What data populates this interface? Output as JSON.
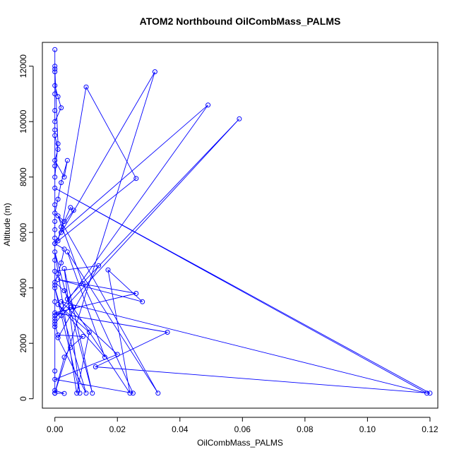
{
  "chart_data": {
    "type": "line",
    "title": "ATOM2 Northbound OilCombMass_PALMS",
    "xlabel": "OilCombMass_PALMS",
    "ylabel": "Altitude (m)",
    "xlim": [
      -0.004,
      0.1225
    ],
    "ylim": [
      -340,
      12860
    ],
    "xticks": [
      0,
      0.02,
      0.04,
      0.06,
      0.08,
      0.1,
      0.12
    ],
    "xtick_labels": [
      "0.00",
      "0.02",
      "0.04",
      "0.06",
      "0.08",
      "0.10",
      "0.12"
    ],
    "yticks": [
      0,
      2000,
      4000,
      6000,
      8000,
      10000,
      12000
    ],
    "ytick_labels": [
      "0",
      "2000",
      "4000",
      "6000",
      "8000",
      "10000",
      "12000"
    ],
    "marker": "open-circle",
    "color": "#0000ff",
    "grid": false,
    "legend": "none",
    "series": [
      {
        "points": [
          [
            0.0,
            12600
          ],
          [
            0.0,
            12000
          ],
          [
            0.0,
            11800
          ],
          [
            0.0,
            11300
          ],
          [
            0.001,
            10900
          ],
          [
            0.002,
            10500
          ],
          [
            0.0,
            10000
          ],
          [
            0.0,
            9500
          ],
          [
            0.001,
            9000
          ],
          [
            0.0,
            8600
          ],
          [
            0.003,
            8000
          ],
          [
            0.004,
            8600
          ],
          [
            0.002,
            7800
          ],
          [
            0.001,
            7200
          ],
          [
            0.0,
            6700
          ],
          [
            0.003,
            6400
          ],
          [
            0.005,
            6900
          ],
          [
            0.006,
            6800
          ],
          [
            0.002,
            6200
          ],
          [
            0.001,
            5700
          ],
          [
            0.0,
            5600
          ],
          [
            0.003,
            5400
          ],
          [
            0.002,
            4900
          ],
          [
            0.001,
            4500
          ],
          [
            0.0,
            4200
          ],
          [
            0.003,
            3900
          ],
          [
            0.006,
            3300
          ],
          [
            0.005,
            3300
          ],
          [
            0.002,
            3000
          ],
          [
            0.0,
            2700
          ],
          [
            0.001,
            2300
          ],
          [
            0.009,
            2250
          ],
          [
            0.005,
            1850
          ],
          [
            0.003,
            1500
          ],
          [
            0.0,
            200
          ],
          [
            0.003,
            190
          ],
          [
            0.0,
            300
          ],
          [
            0.0,
            200
          ],
          [
            0.032,
            11800
          ],
          [
            0.0,
            5600
          ],
          [
            0.026,
            7950
          ],
          [
            0.01,
            11250
          ],
          [
            0.002,
            6000
          ],
          [
            0.049,
            10600
          ],
          [
            0.0,
            2900
          ],
          [
            0.059,
            10100
          ],
          [
            0.004,
            3600
          ],
          [
            0.024,
            200
          ],
          [
            0.017,
            4650
          ],
          [
            0.028,
            3500
          ],
          [
            0.001,
            4300
          ],
          [
            0.026,
            3800
          ],
          [
            0.0,
            3100
          ],
          [
            0.036,
            2400
          ],
          [
            0.013,
            1150
          ],
          [
            0.12,
            200
          ],
          [
            0.0,
            7600
          ],
          [
            0.119,
            200
          ],
          [
            0.002,
            3500
          ],
          [
            0.02,
            1600
          ],
          [
            0.0,
            700
          ],
          [
            0.025,
            200
          ],
          [
            0.009,
            4150
          ],
          [
            0.001,
            6600
          ],
          [
            0.033,
            200
          ],
          [
            0.004,
            5300
          ],
          [
            0.016,
            1500
          ],
          [
            0.001,
            3400
          ],
          [
            0.011,
            2400
          ],
          [
            0.007,
            200
          ],
          [
            0.0,
            5300
          ],
          [
            0.012,
            200
          ],
          [
            0.003,
            4700
          ],
          [
            0.008,
            200
          ],
          [
            0.0,
            4000
          ],
          [
            0.01,
            200
          ],
          [
            0.001,
            2200
          ],
          [
            0.014,
            4800
          ],
          [
            0.0,
            4600
          ],
          [
            0.0,
            3000
          ],
          [
            0.0,
            5800
          ],
          [
            0.0,
            3500
          ],
          [
            0.0,
            2600
          ],
          [
            0.0,
            6400
          ],
          [
            0.0,
            7000
          ],
          [
            0.0,
            8400
          ],
          [
            0.0,
            9700
          ],
          [
            0.0,
            10400
          ],
          [
            0.0,
            11000
          ],
          [
            0.0,
            11900
          ],
          [
            0.001,
            9200
          ],
          [
            0.0,
            8000
          ],
          [
            0.0,
            6100
          ],
          [
            0.0,
            5000
          ],
          [
            0.0,
            4100
          ],
          [
            0.0,
            2800
          ],
          [
            0.0,
            1000
          ],
          [
            0.0,
            200
          ]
        ]
      }
    ]
  }
}
